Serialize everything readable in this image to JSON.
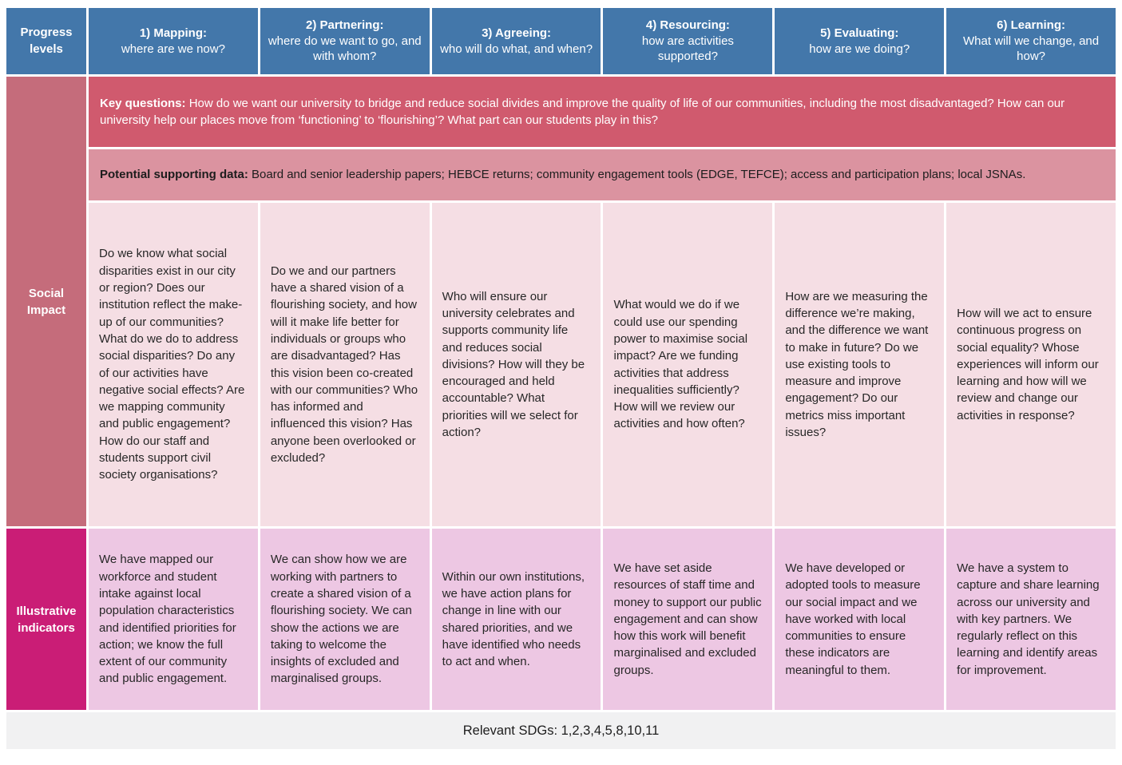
{
  "colors": {
    "header_blue": "#4377aa",
    "key_questions_rose": "#d05a6e",
    "theme_label_rose": "#c56c7b",
    "supporting_data_pink": "#db93a0",
    "question_cell_pink": "#f5dee4",
    "indicator_label_magenta": "#ca1d76",
    "indicator_cell_pink": "#edc7e3",
    "footer_gray": "#f1f1f2"
  },
  "header": {
    "row_label": "Progress levels",
    "columns": [
      {
        "title": "1) Mapping:",
        "subtitle": "where are we now?"
      },
      {
        "title": "2) Partnering:",
        "subtitle": "where do we want to go, and with whom?"
      },
      {
        "title": "3) Agreeing:",
        "subtitle": "who will do what, and when?"
      },
      {
        "title": "4) Resourcing:",
        "subtitle": "how are activities supported?"
      },
      {
        "title": "5) Evaluating:",
        "subtitle": "how are we doing?"
      },
      {
        "title": "6) Learning:",
        "subtitle": "What will we change, and how?"
      }
    ]
  },
  "key_questions": {
    "label": "Key questions:",
    "text": " How do we want our university to bridge and reduce social divides and improve the quality of life of our communities, including the most disadvantaged? How can our university help our places move from ‘functioning’ to ‘flourishing’? What part can our students play in this?"
  },
  "supporting_data": {
    "label": "Potential supporting data:",
    "text": " Board and senior leadership papers; HEBCE returns; community engagement tools (EDGE, TEFCE); access and participation plans; local JSNAs."
  },
  "theme": {
    "label": "Social Impact",
    "cells": [
      "Do we know what social disparities exist in our city or region? Does our institution reflect the make-up of our communities? What do we do to address social disparities? Do any of our activities have negative social effects? Are we mapping community and public engagement? How do our staff and students support civil society organisations?",
      "Do we and our partners have a shared vision of a flourishing society, and how will it make life better for individuals or groups who are disadvantaged? Has this vision been co-created with our communities? Who has informed and influenced this vision? Has anyone been overlooked or excluded?",
      "Who will ensure our university celebrates and supports community life and reduces social divisions? How will they be encouraged and held accountable? What priorities will we select for action?",
      "What would we do if we could use our spending power to maximise social impact? Are we funding activities that address inequalities sufficiently? How will we review our activities and how often?",
      "How are we measuring the difference we’re making, and the difference we want to make in future? Do we use existing tools to measure and improve engagement? Do our metrics miss important issues?",
      "How will we act to ensure continuous progress on social equality? Whose experiences will inform our learning and how will we review and change our activities in response?"
    ]
  },
  "indicators": {
    "label": "Illustrative indicators",
    "cells": [
      "We have mapped our workforce and student intake against local population characteristics and identified priorities for action; we know the full extent of our community and public engagement.",
      "We can show how we are working with partners to create a shared vision of a flourishing society. We can show the actions we are taking to welcome the insights of excluded and marginalised groups.",
      "Within our own institutions, we have action plans for change in line with our shared priorities, and we have identified who needs to act and when.",
      "We have set aside resources of staff time and money to support our public engagement and can show how this work will benefit marginalised and excluded groups.",
      "We have developed or adopted tools to measure our social impact and we have worked with local communities to ensure these indicators are meaningful to them.",
      "We have a system to capture and share learning across our university and with key partners. We regularly reflect on this learning and identify areas for improvement."
    ]
  },
  "footer": {
    "text": "Relevant SDGs: 1,2,3,4,5,8,10,11"
  }
}
